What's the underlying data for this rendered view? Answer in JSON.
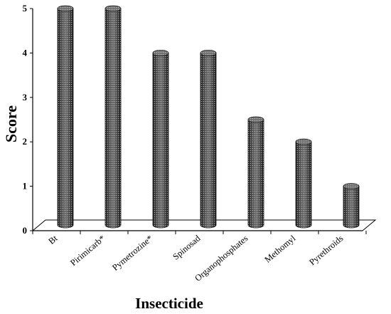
{
  "chart_data": {
    "type": "bar",
    "categories": [
      "Bt",
      "Pirimicarb*",
      "Pymetrozine*",
      "Spinosad",
      "Organophosphates",
      "Methomyl",
      "Pyrethroids"
    ],
    "values": [
      5,
      5,
      4,
      4,
      2.5,
      2,
      1
    ],
    "title": "",
    "xlabel": "Insecticide",
    "ylabel": "Score",
    "ylim": [
      0,
      5
    ],
    "yticks": [
      "0",
      "1",
      "2",
      "3",
      "4",
      "5"
    ],
    "grid": false,
    "legend": "none",
    "bar_style": "3d cylinder, dark gray dotted fill",
    "colors": {
      "bar": "#3a3a3a",
      "bar_highlight": "#bdbdbd",
      "axis": "#000000",
      "floor": "#9a9a9a"
    }
  }
}
